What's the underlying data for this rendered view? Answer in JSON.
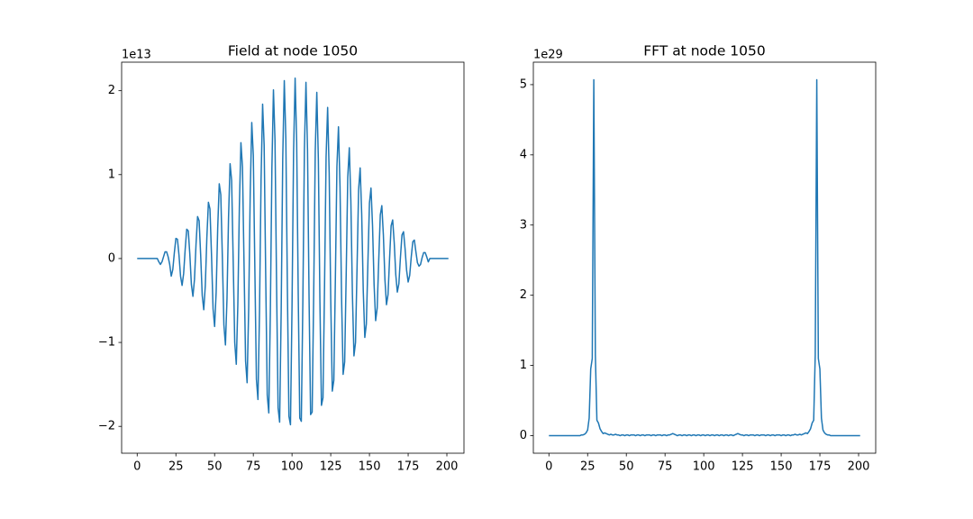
{
  "chart_data": [
    {
      "type": "line",
      "title": "Field at node 1050",
      "offset_label": "1e13",
      "color": "#1f77b4",
      "x": [
        0,
        1,
        2,
        3,
        4,
        5,
        6,
        7,
        8,
        9,
        10,
        11,
        12,
        13,
        14,
        15,
        16,
        17,
        18,
        19,
        20,
        21,
        22,
        23,
        24,
        25,
        26,
        27,
        28,
        29,
        30,
        31,
        32,
        33,
        34,
        35,
        36,
        37,
        38,
        39,
        40,
        41,
        42,
        43,
        44,
        45,
        46,
        47,
        48,
        49,
        50,
        51,
        52,
        53,
        54,
        55,
        56,
        57,
        58,
        59,
        60,
        61,
        62,
        63,
        64,
        65,
        66,
        67,
        68,
        69,
        70,
        71,
        72,
        73,
        74,
        75,
        76,
        77,
        78,
        79,
        80,
        81,
        82,
        83,
        84,
        85,
        86,
        87,
        88,
        89,
        90,
        91,
        92,
        93,
        94,
        95,
        96,
        97,
        98,
        99,
        100,
        101,
        102,
        103,
        104,
        105,
        106,
        107,
        108,
        109,
        110,
        111,
        112,
        113,
        114,
        115,
        116,
        117,
        118,
        119,
        120,
        121,
        122,
        123,
        124,
        125,
        126,
        127,
        128,
        129,
        130,
        131,
        132,
        133,
        134,
        135,
        136,
        137,
        138,
        139,
        140,
        141,
        142,
        143,
        144,
        145,
        146,
        147,
        148,
        149,
        150,
        151,
        152,
        153,
        154,
        155,
        156,
        157,
        158,
        159,
        160,
        161,
        162,
        163,
        164,
        165,
        166,
        167,
        168,
        169,
        170,
        171,
        172,
        173,
        174,
        175,
        176,
        177,
        178,
        179,
        180,
        181,
        182,
        183,
        184,
        185,
        186,
        187,
        188,
        189,
        190,
        191,
        192,
        193,
        194,
        195,
        196,
        197,
        198,
        199,
        200,
        201
      ],
      "values": [
        0,
        0,
        0,
        0,
        0,
        0,
        0,
        0,
        0,
        0,
        0,
        0,
        0,
        0,
        -0.04,
        -0.07,
        -0.04,
        0.02,
        0.08,
        0.08,
        0.02,
        -0.07,
        -0.21,
        -0.13,
        0.07,
        0.24,
        0.23,
        0.04,
        -0.21,
        -0.32,
        -0.18,
        0.11,
        0.35,
        0.33,
        0.05,
        -0.31,
        -0.45,
        -0.25,
        0.17,
        0.5,
        0.45,
        0.04,
        -0.44,
        -0.61,
        -0.32,
        0.25,
        0.67,
        0.59,
        0.04,
        -0.6,
        -0.81,
        -0.4,
        0.36,
        0.89,
        0.76,
        0.02,
        -0.79,
        -1.03,
        -0.48,
        0.49,
        1.13,
        0.93,
        -0.02,
        -1.0,
        -1.26,
        -0.55,
        0.63,
        1.38,
        1.09,
        -0.06,
        -1.22,
        -1.48,
        -0.6,
        0.78,
        1.62,
        1.23,
        -0.13,
        -1.44,
        -1.68,
        -0.63,
        0.94,
        1.84,
        1.35,
        -0.2,
        -1.63,
        -1.84,
        -0.64,
        1.08,
        2.01,
        1.41,
        -0.28,
        -1.78,
        -1.95,
        -0.62,
        1.19,
        2.12,
        1.43,
        -0.35,
        -1.88,
        -1.98,
        -0.57,
        1.27,
        2.15,
        1.39,
        -0.42,
        -1.9,
        -1.94,
        -0.5,
        1.3,
        2.1,
        1.3,
        -0.47,
        -1.86,
        -1.83,
        -0.42,
        1.28,
        1.98,
        1.18,
        -0.49,
        -1.75,
        -1.66,
        -0.33,
        1.21,
        1.8,
        1.02,
        -0.49,
        -1.58,
        -1.45,
        -0.24,
        1.1,
        1.57,
        0.85,
        -0.47,
        -1.38,
        -1.23,
        -0.17,
        0.97,
        1.32,
        0.68,
        -0.43,
        -1.16,
        -1.0,
        -0.1,
        0.82,
        1.08,
        0.53,
        -0.38,
        -0.94,
        -0.78,
        -0.05,
        0.66,
        0.84,
        0.39,
        -0.31,
        -0.74,
        -0.59,
        -0.02,
        0.52,
        0.63,
        0.28,
        -0.25,
        -0.55,
        -0.43,
        0,
        0.39,
        0.46,
        0.19,
        -0.19,
        -0.4,
        -0.3,
        0.01,
        0.28,
        0.32,
        0.12,
        -0.14,
        -0.28,
        -0.2,
        0.02,
        0.2,
        0.22,
        0.08,
        -0.05,
        -0.09,
        -0.07,
        0.01,
        0.07,
        0.07,
        0.02,
        -0.04,
        0,
        0,
        0,
        0,
        0,
        0,
        0,
        0,
        0,
        0,
        0,
        0,
        0
      ],
      "xlim": [
        -10.05,
        211.05
      ],
      "xticks": [
        0,
        25,
        50,
        75,
        100,
        125,
        150,
        175,
        200
      ],
      "ylim": [
        -2.32,
        2.34
      ],
      "yticks": [
        {
          "value": -2,
          "label": "−2"
        },
        {
          "value": -1,
          "label": "−1"
        },
        0,
        1,
        2
      ]
    },
    {
      "type": "line",
      "title": "FFT at node 1050",
      "offset_label": "1e29",
      "color": "#1f77b4",
      "x": [
        0,
        1,
        2,
        3,
        4,
        5,
        6,
        7,
        8,
        9,
        10,
        11,
        12,
        13,
        14,
        15,
        16,
        17,
        18,
        19,
        20,
        21,
        22,
        23,
        24,
        25,
        26,
        27,
        28,
        29,
        30,
        31,
        32,
        33,
        34,
        35,
        36,
        37,
        38,
        39,
        40,
        41,
        42,
        43,
        44,
        45,
        46,
        47,
        48,
        49,
        50,
        51,
        52,
        53,
        54,
        55,
        56,
        57,
        58,
        59,
        60,
        61,
        62,
        63,
        64,
        65,
        66,
        67,
        68,
        69,
        70,
        71,
        72,
        73,
        74,
        75,
        76,
        77,
        78,
        79,
        80,
        81,
        82,
        83,
        84,
        85,
        86,
        87,
        88,
        89,
        90,
        91,
        92,
        93,
        94,
        95,
        96,
        97,
        98,
        99,
        100,
        101,
        102,
        103,
        104,
        105,
        106,
        107,
        108,
        109,
        110,
        111,
        112,
        113,
        114,
        115,
        116,
        117,
        118,
        119,
        120,
        121,
        122,
        123,
        124,
        125,
        126,
        127,
        128,
        129,
        130,
        131,
        132,
        133,
        134,
        135,
        136,
        137,
        138,
        139,
        140,
        141,
        142,
        143,
        144,
        145,
        146,
        147,
        148,
        149,
        150,
        151,
        152,
        153,
        154,
        155,
        156,
        157,
        158,
        159,
        160,
        161,
        162,
        163,
        164,
        165,
        166,
        167,
        168,
        169,
        170,
        171,
        172,
        173,
        174,
        175,
        176,
        177,
        178,
        179,
        180,
        181,
        182,
        183,
        184,
        185,
        186,
        187,
        188,
        189,
        190,
        191,
        192,
        193,
        194,
        195,
        196,
        197,
        198,
        199,
        200,
        201
      ],
      "values": [
        0,
        0,
        0,
        0,
        0,
        0,
        0,
        0,
        0,
        0,
        0,
        0,
        0,
        0,
        0,
        0,
        0,
        0,
        0,
        0,
        0,
        0.01,
        0.01,
        0.02,
        0.04,
        0.08,
        0.25,
        0.95,
        1.1,
        5.07,
        1.15,
        0.22,
        0.18,
        0.1,
        0.06,
        0.03,
        0.04,
        0.03,
        0.02,
        0.01,
        0.02,
        0.01,
        0.01,
        0.02,
        0.01,
        0.01,
        0,
        0.01,
        0.01,
        0,
        0.01,
        0.01,
        0,
        0.01,
        0.01,
        0.01,
        0,
        0.01,
        0.01,
        0,
        0.01,
        0.01,
        0,
        0.01,
        0.01,
        0.01,
        0,
        0.01,
        0.01,
        0,
        0.01,
        0.01,
        0.01,
        0,
        0.01,
        0.01,
        0,
        0.01,
        0.01,
        0.02,
        0.03,
        0.02,
        0.01,
        0,
        0.01,
        0.01,
        0,
        0.01,
        0.01,
        0,
        0.01,
        0.01,
        0,
        0.01,
        0.01,
        0,
        0.01,
        0.01,
        0,
        0.01,
        0.01,
        0,
        0.01,
        0.01,
        0,
        0.01,
        0.01,
        0,
        0.01,
        0.01,
        0,
        0.01,
        0.01,
        0,
        0.01,
        0.01,
        0,
        0.01,
        0.01,
        0,
        0.01,
        0.02,
        0.03,
        0.02,
        0.01,
        0.01,
        0,
        0.01,
        0.01,
        0,
        0.01,
        0.01,
        0.01,
        0,
        0.01,
        0.01,
        0,
        0.01,
        0.01,
        0.01,
        0,
        0.01,
        0.01,
        0,
        0.01,
        0.01,
        0,
        0.01,
        0.01,
        0.01,
        0,
        0.01,
        0.01,
        0,
        0.01,
        0.01,
        0,
        0.01,
        0.01,
        0.02,
        0.01,
        0.01,
        0.02,
        0.01,
        0.02,
        0.03,
        0.04,
        0.03,
        0.06,
        0.1,
        0.18,
        0.22,
        1.15,
        5.07,
        1.1,
        0.95,
        0.25,
        0.08,
        0.04,
        0.02,
        0.01,
        0.01,
        0,
        0,
        0,
        0,
        0,
        0,
        0,
        0,
        0,
        0,
        0,
        0,
        0,
        0,
        0,
        0,
        0,
        0,
        0,
        0
      ],
      "xlim": [
        -10.05,
        211.05
      ],
      "xticks": [
        0,
        25,
        50,
        75,
        100,
        125,
        150,
        175,
        200
      ],
      "ylim": [
        -0.25,
        5.32
      ],
      "yticks": [
        0,
        1,
        2,
        3,
        4,
        5
      ]
    }
  ]
}
